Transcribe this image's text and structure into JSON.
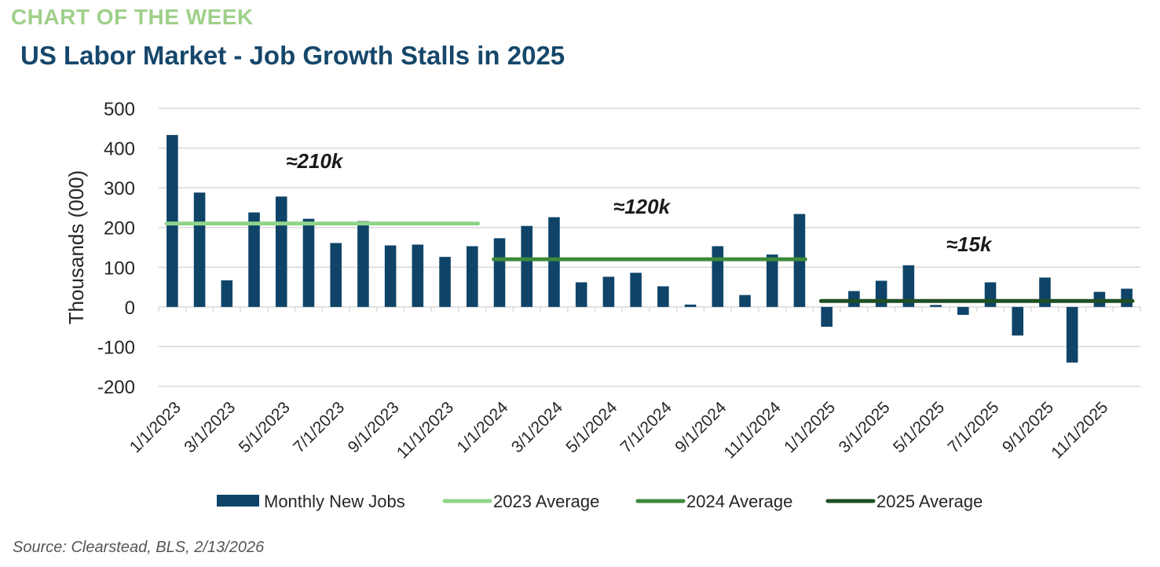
{
  "header": {
    "kicker": "CHART OF THE WEEK",
    "title": "US Labor Market - Job Growth Stalls in 2025"
  },
  "source": "Source: Clearstead, BLS, 2/13/2026",
  "colors": {
    "bar": "#0f4468",
    "avg2023": "#8fd48a",
    "avg2024": "#3c8a3c",
    "avg2025": "#1f4f22",
    "grid": "#d9d9d9",
    "text": "#262626"
  },
  "chart_data": {
    "type": "bar",
    "title": "US Labor Market - Job Growth Stalls in 2025",
    "xlabel": "",
    "ylabel": "Thousands (000)",
    "ylim": [
      -200,
      500
    ],
    "yticks": [
      500,
      400,
      300,
      200,
      100,
      0,
      -100,
      -200
    ],
    "categories": [
      "1/1/2023",
      "2/1/2023",
      "3/1/2023",
      "4/1/2023",
      "5/1/2023",
      "6/1/2023",
      "7/1/2023",
      "8/1/2023",
      "9/1/2023",
      "10/1/2023",
      "11/1/2023",
      "12/1/2023",
      "1/1/2024",
      "2/1/2024",
      "3/1/2024",
      "4/1/2024",
      "5/1/2024",
      "6/1/2024",
      "7/1/2024",
      "8/1/2024",
      "9/1/2024",
      "10/1/2024",
      "11/1/2024",
      "12/1/2024",
      "1/1/2025",
      "2/1/2025",
      "3/1/2025",
      "4/1/2025",
      "5/1/2025",
      "6/1/2025",
      "7/1/2025",
      "8/1/2025",
      "9/1/2025",
      "10/1/2025",
      "11/1/2025",
      "12/1/2025"
    ],
    "tick_labels": [
      "1/1/2023",
      "3/1/2023",
      "5/1/2023",
      "7/1/2023",
      "9/1/2023",
      "11/1/2023",
      "1/1/2024",
      "3/1/2024",
      "5/1/2024",
      "7/1/2024",
      "9/1/2024",
      "11/1/2024",
      "1/1/2025",
      "3/1/2025",
      "5/1/2025",
      "7/1/2025",
      "9/1/2025",
      "11/1/2025"
    ],
    "series": [
      {
        "name": "Monthly New Jobs",
        "values": [
          433,
          288,
          67,
          238,
          278,
          222,
          161,
          216,
          155,
          157,
          126,
          153,
          173,
          204,
          226,
          62,
          76,
          86,
          52,
          6,
          153,
          30,
          132,
          234,
          -50,
          40,
          66,
          105,
          5,
          -20,
          62,
          -72,
          74,
          -140,
          38,
          46
        ]
      }
    ],
    "averages": [
      {
        "name": "2023 Average",
        "value": 210,
        "from": 0,
        "to": 11,
        "annotation": "≈210k",
        "annotation_value": 350
      },
      {
        "name": "2024 Average",
        "value": 120,
        "from": 12,
        "to": 23,
        "annotation": "≈120k",
        "annotation_value": 235
      },
      {
        "name": "2025 Average",
        "value": 15,
        "from": 24,
        "to": 35,
        "annotation": "≈15k",
        "annotation_value": 140
      }
    ],
    "legend": [
      "Monthly New Jobs",
      "2023 Average",
      "2024 Average",
      "2025 Average"
    ],
    "legend_position": "bottom"
  }
}
